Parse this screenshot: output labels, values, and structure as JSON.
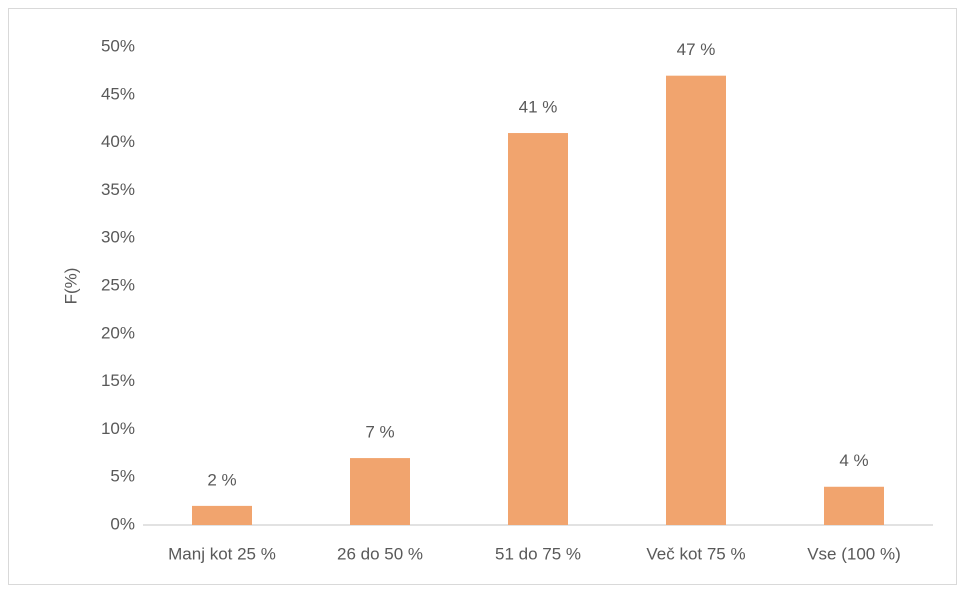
{
  "chart_data": {
    "type": "bar",
    "y_label": "F(%)",
    "categories": [
      "Manj kot 25 %",
      "26 do 50 %",
      "51 do 75 %",
      "Več kot 75 %",
      "Vse (100 %)"
    ],
    "values": [
      2,
      7,
      41,
      47,
      4
    ],
    "value_labels": [
      "2 %",
      "7 %",
      "41 %",
      "47 %",
      "4 %"
    ],
    "color": "#f1a46e",
    "ylim": [
      0,
      50
    ],
    "yticks": [
      {
        "value": 0,
        "label": "0%"
      },
      {
        "value": 5,
        "label": "5%"
      },
      {
        "value": 10,
        "label": "10%"
      },
      {
        "value": 15,
        "label": "15%"
      },
      {
        "value": 20,
        "label": "20%"
      },
      {
        "value": 25,
        "label": "25%"
      },
      {
        "value": 30,
        "label": "30%"
      },
      {
        "value": 35,
        "label": "35%"
      },
      {
        "value": 40,
        "label": "40%"
      },
      {
        "value": 45,
        "label": "45%"
      },
      {
        "value": 50,
        "label": "50%"
      }
    ],
    "grid": false
  }
}
